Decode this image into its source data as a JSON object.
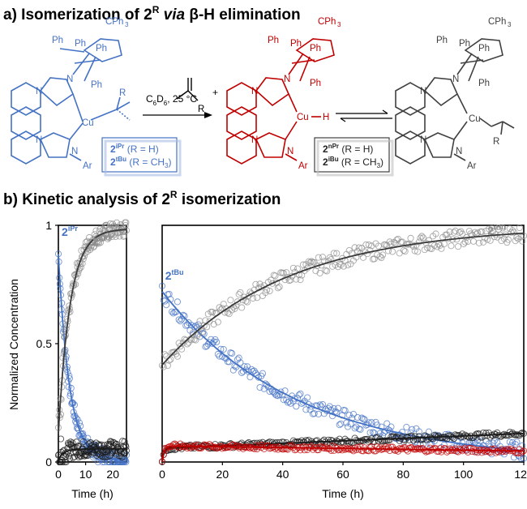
{
  "panel_a": {
    "title_prefix": "a) Isomerization of 2",
    "title_sup": "R",
    "title_via": "via",
    "title_suffix": "β-H elimination",
    "colors": {
      "blue": "#4472c4",
      "red": "#c00000",
      "gray": "#404040"
    },
    "structure_blue": {
      "labels": [
        "Ph",
        "Ph",
        "CPh",
        "3",
        "Ph",
        "Ph",
        "N",
        "N",
        "N",
        "N",
        "Cu",
        "R",
        "Ar"
      ]
    },
    "structure_red": {
      "labels": [
        "Ph",
        "Ph",
        "CPh",
        "3",
        "Ph",
        "Ph",
        "N",
        "N",
        "N",
        "N",
        "Cu",
        "H",
        "Ar"
      ]
    },
    "structure_gray": {
      "labels": [
        "Ph",
        "Ph",
        "CPh",
        "3",
        "Ph",
        "Ph",
        "N",
        "N",
        "N",
        "N",
        "Cu",
        "R",
        "Ar"
      ]
    },
    "conditions": {
      "c6d6": "C",
      "sub6": "6",
      "d": "D",
      "sub6b": "6",
      "temp": ", 25 °C"
    },
    "alkene": {
      "r": "R",
      "plus": "+"
    },
    "box_left": {
      "line1_main": "2",
      "line1_sup": "iPr",
      "line1_rest": " (R = H)",
      "line2_main": "2",
      "line2_sup": "tBu",
      "line2_rest": " (R = CH",
      "line2_sub": "3",
      "line2_end": ")"
    },
    "box_right": {
      "line1_main": "2",
      "line1_sup": "nPr",
      "line1_rest": " (R = H)",
      "line2_main": "2",
      "line2_sup": "iBu",
      "line2_rest": " (R = CH",
      "line2_sub": "3",
      "line2_end": ")"
    }
  },
  "panel_b": {
    "title_prefix": "b) Kinetic analysis of 2",
    "title_sup": "R",
    "title_suffix": " isomerization",
    "ylabel": "Normalized Concentration",
    "series_colors": {
      "blue": "#4472c4",
      "gray": "#8c8c8c",
      "black": "#1a1a1a",
      "red": "#c00000"
    }
  },
  "chart_data": [
    {
      "type": "scatter",
      "xlabel": "Time (h)",
      "ylabel": "Normalized Concentration",
      "xlim": [
        0,
        25
      ],
      "ylim": [
        0,
        1
      ],
      "x_ticks": [
        "0",
        "10",
        "20"
      ],
      "y_ticks": [
        "0",
        "0.5",
        "1"
      ],
      "grid": false,
      "series": [
        {
          "name": "2iPr",
          "label_main": "2",
          "label_sup": "iPr",
          "color": "#4472c4",
          "model": "decay",
          "y0": 0.88,
          "yinf": 0.01,
          "k": 0.25,
          "label_x": 1.2,
          "label_y": 0.955
        },
        {
          "name": "2nPr",
          "label_main": "2",
          "label_sup": "nPr",
          "color": "#8c8c8c",
          "model": "rise",
          "y0": 0.12,
          "yinf": 0.985,
          "k": 0.23,
          "label_x": 12.5,
          "label_y": 0.915
        },
        {
          "name": "",
          "color": "#1a1a1a",
          "model": "rise",
          "y0": 0.01,
          "yinf": 0.055,
          "k": 0.5
        }
      ]
    },
    {
      "type": "scatter",
      "xlabel": "Time (h)",
      "xlim": [
        0,
        120
      ],
      "ylim": [
        0,
        1
      ],
      "x_ticks": [
        "0",
        "20",
        "40",
        "60",
        "80",
        "100",
        "120"
      ],
      "grid": false,
      "series": [
        {
          "name": "2tBu",
          "label_main": "2",
          "label_sup": "tBu",
          "color": "#4472c4",
          "model": "decay",
          "y0": 0.72,
          "yinf": 0.0,
          "k": 0.0225,
          "label_x": 1,
          "label_y": 0.77
        },
        {
          "name": "2iBu",
          "label_main": "2",
          "label_sup": "iBu",
          "color": "#8c8c8c",
          "model": "rise",
          "y0": 0.41,
          "yinf": 1.0,
          "k": 0.024,
          "label_x": 108,
          "label_y": 0.96
        },
        {
          "name": "",
          "color": "#1a1a1a",
          "model": "risebi",
          "y0": 0.0,
          "a": 0.058,
          "k1": 1.6,
          "b": 0.00052
        },
        {
          "name": "",
          "color": "#c00000",
          "model": "risedecay",
          "y0": 0.0,
          "a": 0.068,
          "k1": 1.6,
          "b": 0.00018
        }
      ]
    }
  ]
}
